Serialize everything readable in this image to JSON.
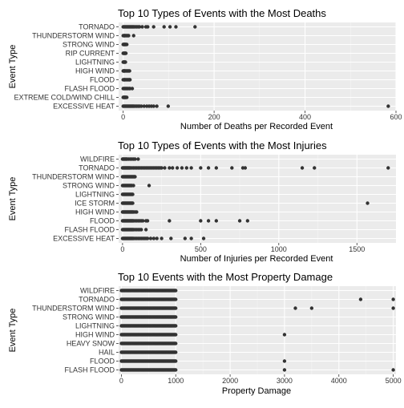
{
  "chart_data": [
    {
      "type": "scatter",
      "title": "Top 10 Types of Events with the Most Deaths",
      "xlabel": "Number of Deaths per Recorded Event",
      "ylabel": "Event Type",
      "xlim": [
        -10,
        600
      ],
      "xticks": [
        0,
        200,
        400,
        600
      ],
      "grid": true,
      "categories": [
        "TORNADO",
        "THUNDERSTORM WIND",
        "STRONG WIND",
        "RIP CURRENT",
        "LIGHTNING",
        "HIGH WIND",
        "FLOOD",
        "FLASH FLOOD",
        "EXTREME COLD/WIND CHILL",
        "EXCESSIVE HEAT"
      ],
      "points": [
        {
          "category": "TORNADO",
          "x": [
            0,
            2,
            4,
            6,
            8,
            10,
            12,
            14,
            16,
            18,
            20,
            22,
            24,
            27,
            30,
            33,
            36,
            42,
            50,
            54,
            67,
            90,
            103,
            116,
            158
          ]
        },
        {
          "category": "THUNDERSTORM WIND",
          "x": [
            0,
            2,
            3,
            4,
            6,
            8,
            10,
            12,
            23
          ]
        },
        {
          "category": "STRONG WIND",
          "x": [
            0,
            1,
            2,
            3,
            4,
            5,
            6,
            8
          ]
        },
        {
          "category": "RIP CURRENT",
          "x": [
            0,
            1,
            2,
            3,
            4,
            5,
            6
          ]
        },
        {
          "category": "LIGHTNING",
          "x": [
            0,
            1,
            2,
            3,
            4,
            5
          ]
        },
        {
          "category": "HIGH WIND",
          "x": [
            0,
            1,
            2,
            3,
            4,
            6,
            8,
            10,
            12,
            14
          ]
        },
        {
          "category": "FLOOD",
          "x": [
            0,
            2,
            3,
            4,
            6,
            8,
            10,
            12,
            14,
            15
          ]
        },
        {
          "category": "FLASH FLOOD",
          "x": [
            0,
            2,
            4,
            6,
            8,
            10,
            13,
            15,
            20
          ]
        },
        {
          "category": "EXTREME COLD/WIND CHILL",
          "x": [
            0,
            1,
            2,
            3,
            4,
            5,
            6,
            8
          ]
        },
        {
          "category": "EXCESSIVE HEAT",
          "x": [
            0,
            2,
            4,
            6,
            8,
            10,
            12,
            14,
            16,
            18,
            20,
            22,
            24,
            27,
            30,
            33,
            36,
            40,
            46,
            52,
            57,
            62,
            67,
            74,
            99,
            583
          ]
        }
      ]
    },
    {
      "type": "scatter",
      "title": "Top 10 Types of Events with the Most Injuries",
      "xlabel": "Number of Injuries per Recorded Event",
      "ylabel": "Event Type",
      "xlim": [
        -25,
        1750
      ],
      "xticks": [
        0,
        500,
        1000,
        1500
      ],
      "grid": true,
      "categories": [
        "WILDFIRE",
        "TORNADO",
        "THUNDERSTORM WIND",
        "STRONG WIND",
        "LIGHTNING",
        "ICE STORM",
        "HIGH WIND",
        "FLOOD",
        "FLASH FLOOD",
        "EXCESSIVE HEAT"
      ],
      "points": [
        {
          "category": "WILDFIRE",
          "x": [
            0,
            5,
            10,
            15,
            20,
            25,
            30,
            40,
            50,
            60,
            70,
            80,
            100
          ]
        },
        {
          "category": "TORNADO",
          "x": [
            0,
            5,
            10,
            15,
            20,
            25,
            30,
            35,
            40,
            45,
            50,
            60,
            70,
            80,
            90,
            100,
            110,
            120,
            130,
            140,
            150,
            160,
            170,
            180,
            190,
            200,
            210,
            220,
            230,
            240,
            250,
            270,
            300,
            320,
            350,
            380,
            410,
            440,
            500,
            550,
            600,
            700,
            770,
            785,
            1150,
            1228,
            1700
          ]
        },
        {
          "category": "THUNDERSTORM WIND",
          "x": [
            0,
            5,
            10,
            15,
            20,
            25,
            30,
            35,
            40,
            45,
            50,
            55,
            60,
            65,
            70,
            75,
            80
          ]
        },
        {
          "category": "STRONG WIND",
          "x": [
            0,
            5,
            10,
            15,
            20,
            25,
            30,
            35,
            40,
            45,
            50,
            55,
            60,
            70,
            170
          ]
        },
        {
          "category": "LIGHTNING",
          "x": [
            0,
            5,
            10,
            15,
            20,
            25,
            30,
            35,
            40,
            45,
            50,
            55,
            60,
            65
          ]
        },
        {
          "category": "ICE STORM",
          "x": [
            0,
            5,
            10,
            15,
            20,
            25,
            30,
            35,
            40,
            45,
            50,
            55,
            60,
            65,
            1568
          ]
        },
        {
          "category": "HIGH WIND",
          "x": [
            0,
            5,
            10,
            15,
            20,
            25,
            30,
            35,
            40,
            45,
            50,
            55,
            60,
            65,
            70,
            80,
            90
          ]
        },
        {
          "category": "FLOOD",
          "x": [
            0,
            5,
            10,
            15,
            20,
            25,
            30,
            35,
            40,
            45,
            50,
            55,
            60,
            65,
            70,
            80,
            90,
            100,
            110,
            120,
            130,
            150,
            160,
            300,
            500,
            550,
            600,
            750,
            800
          ]
        },
        {
          "category": "FLASH FLOOD",
          "x": [
            0,
            5,
            10,
            15,
            20,
            25,
            30,
            35,
            40,
            45,
            50,
            55,
            60,
            65,
            70,
            80,
            90,
            100,
            110,
            120,
            150
          ]
        },
        {
          "category": "EXCESSIVE HEAT",
          "x": [
            0,
            5,
            10,
            15,
            20,
            25,
            30,
            35,
            40,
            45,
            50,
            55,
            60,
            65,
            70,
            80,
            90,
            100,
            110,
            120,
            130,
            140,
            150,
            160,
            180,
            200,
            220,
            250,
            310,
            400,
            440,
            519
          ]
        }
      ]
    },
    {
      "type": "scatter",
      "title": "Top 10 Events with the Most Property Damage",
      "xlabel": "Property Damage",
      "ylabel": "Event Type",
      "xlim": [
        -50,
        5050
      ],
      "xticks": [
        0,
        1000,
        2000,
        3000,
        4000,
        5000
      ],
      "grid": true,
      "categories": [
        "WILDFIRE",
        "TORNADO",
        "THUNDERSTORM WIND",
        "STRONG WIND",
        "LIGHTNING",
        "HIGH WIND",
        "HEAVY SNOW",
        "HAIL",
        "FLOOD",
        "FLASH FLOOD"
      ],
      "points": [
        {
          "category": "WILDFIRE",
          "x_dense_range": [
            0,
            1000
          ]
        },
        {
          "category": "TORNADO",
          "x_dense_range": [
            0,
            1000
          ],
          "x": [
            4400,
            5000
          ]
        },
        {
          "category": "THUNDERSTORM WIND",
          "x_dense_range": [
            0,
            1000
          ],
          "x": [
            3200,
            3500,
            5000
          ]
        },
        {
          "category": "STRONG WIND",
          "x_dense_range": [
            0,
            1000
          ]
        },
        {
          "category": "LIGHTNING",
          "x_dense_range": [
            0,
            1000
          ]
        },
        {
          "category": "HIGH WIND",
          "x_dense_range": [
            0,
            1000
          ],
          "x": [
            3000
          ]
        },
        {
          "category": "HEAVY SNOW",
          "x_dense_range": [
            0,
            1000
          ]
        },
        {
          "category": "HAIL",
          "x_dense_range": [
            0,
            1000
          ]
        },
        {
          "category": "FLOOD",
          "x_dense_range": [
            0,
            1000
          ],
          "x": [
            3000
          ]
        },
        {
          "category": "FLASH FLOOD",
          "x_dense_range": [
            0,
            1000
          ],
          "x": [
            3000,
            5000
          ]
        }
      ]
    }
  ]
}
